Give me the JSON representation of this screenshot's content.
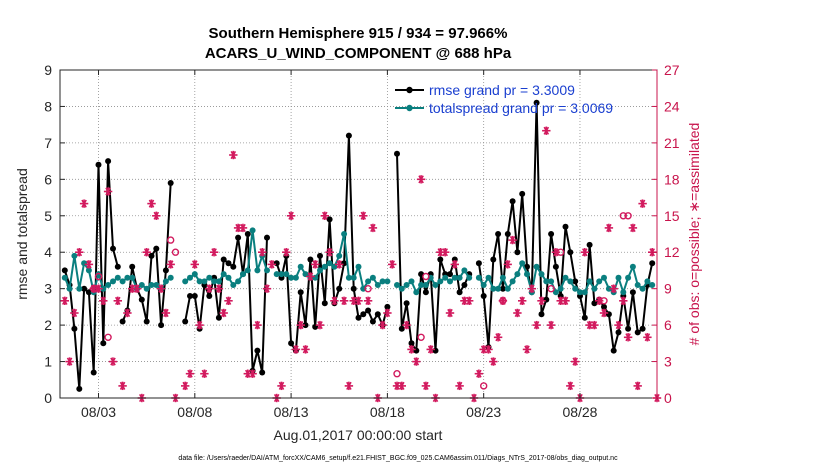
{
  "chart_data": {
    "type": "line",
    "title": "Southern Hemisphere 915 / 934 = 97.966%",
    "subtitle": "ACARS_U_WIND_COMPONENT @ 688 hPa",
    "xlabel": "Aug.01,2017 00:00:00 start",
    "ylabel": "rmse and totalspread",
    "y2label": "# of obs: o=possible; ∗=assimilated",
    "xlim": [
      1.0,
      32.0
    ],
    "ylim": [
      0,
      9
    ],
    "y2lim": [
      0,
      27
    ],
    "xticks": [
      {
        "x": 3,
        "label": "08/03"
      },
      {
        "x": 8,
        "label": "08/08"
      },
      {
        "x": 13,
        "label": "08/13"
      },
      {
        "x": 18,
        "label": "08/18"
      },
      {
        "x": 23,
        "label": "08/23"
      },
      {
        "x": 28,
        "label": "08/28"
      }
    ],
    "yticks": [
      "0",
      "1",
      "2",
      "3",
      "4",
      "5",
      "6",
      "7",
      "8",
      "9"
    ],
    "y2ticks": [
      "0",
      "3",
      "6",
      "9",
      "12",
      "15",
      "18",
      "21",
      "24",
      "27"
    ],
    "legend_position": "top-right",
    "footnote": "data file: /Users/raeder/DAI/ATM_forcXX/CAM6_setup/f.e21.FHIST_BGC.f09_025.CAM6assim.011/Diags_NTrS_2017-08/obs_diag_output.nc",
    "series": [
      {
        "name": "rmse grand pr = 3.3009",
        "color": "#000000",
        "segments": [
          {
            "x": [
              1.25,
              1.5,
              1.75,
              2.0,
              2.25,
              2.5,
              2.75,
              3.0,
              3.25,
              3.5,
              3.75,
              4.0
            ],
            "y": [
              3.5,
              3.1,
              1.9,
              0.25,
              3.0,
              2.9,
              0.7,
              6.4,
              1.5,
              6.5,
              4.1,
              3.6
            ]
          },
          {
            "x": [
              4.25,
              4.5,
              4.75,
              5.0,
              5.25,
              5.5,
              5.75,
              6.0,
              6.25,
              6.5,
              6.75
            ],
            "y": [
              2.1,
              2.4,
              3.6,
              3.0,
              2.7,
              2.1,
              3.9,
              4.1,
              2.0,
              3.5,
              5.9
            ]
          },
          {
            "x": [
              7.5,
              7.75,
              8.0,
              8.25,
              8.5,
              8.75,
              9.0,
              9.25,
              9.5,
              9.75,
              10.0,
              10.25,
              10.5,
              10.75,
              11.0,
              11.25,
              11.5,
              11.75
            ],
            "y": [
              2.1,
              2.8,
              2.8,
              1.9,
              3.1,
              2.8,
              3.3,
              2.2,
              3.8,
              3.7,
              3.6,
              4.4,
              3.4,
              4.5,
              0.75,
              1.3,
              0.7,
              4.4
            ]
          },
          {
            "x": [
              12.25,
              12.5,
              12.75,
              13.0,
              13.25,
              13.5,
              13.75,
              14.0,
              14.25,
              14.5,
              14.75,
              15.0,
              15.25,
              15.5,
              15.75,
              16.0,
              16.25,
              16.5,
              16.75,
              17.0,
              17.25,
              17.5,
              17.75,
              18.0
            ],
            "y": [
              3.7,
              3.3,
              3.9,
              1.5,
              1.3,
              2.9,
              2.0,
              3.8,
              1.95,
              3.9,
              2.6,
              4.9,
              2.6,
              3.0,
              3.7,
              7.2,
              3.0,
              2.2,
              2.3,
              2.4,
              2.1,
              2.3,
              2.0,
              2.5
            ]
          },
          {
            "x": [
              18.5,
              18.75,
              19.0,
              19.25,
              19.5,
              19.75,
              20.0,
              20.25,
              20.5,
              20.75,
              21.0,
              21.25,
              21.5,
              21.75,
              22.0,
              22.25
            ],
            "y": [
              6.7,
              1.9,
              2.6,
              1.5,
              1.3,
              3.4,
              2.9,
              3.4,
              1.3,
              3.8,
              3.4,
              3.4,
              3.8,
              2.9,
              3.1,
              3.4
            ]
          },
          {
            "x": [
              22.75,
              23.0,
              23.25,
              23.5,
              23.75,
              24.0,
              24.25,
              24.5,
              24.75,
              25.0,
              25.25,
              25.5,
              25.75,
              26.0,
              26.25,
              26.5,
              26.75,
              27.0,
              27.25,
              27.5,
              27.75,
              28.0,
              28.25,
              28.5,
              28.75,
              29.0,
              29.25,
              29.5,
              29.75,
              30.0,
              30.25,
              30.5,
              30.75,
              31.0,
              31.25,
              31.5,
              31.75
            ],
            "y": [
              3.7,
              2.8,
              1.4,
              3.8,
              4.5,
              3.0,
              4.5,
              5.4,
              4.0,
              5.6,
              3.6,
              2.9,
              8.1,
              2.3,
              2.7,
              4.5,
              3.6,
              2.8,
              4.7,
              4.0,
              3.2,
              2.8,
              2.2,
              4.2,
              2.6,
              2.7,
              2.5,
              2.3,
              1.3,
              1.8,
              2.8,
              1.9,
              2.9,
              1.8,
              1.9,
              3.1,
              3.7
            ]
          }
        ]
      },
      {
        "name": "totalspread grand pr = 3.0069",
        "color": "#0a7f7f",
        "segments": [
          {
            "x": [
              1.25,
              1.5,
              1.75,
              2.0,
              2.25,
              2.5,
              2.75,
              3.0,
              3.25,
              3.5,
              3.75,
              4.0
            ],
            "y": [
              3.3,
              3.0,
              3.9,
              3.0,
              3.7,
              3.5,
              2.9,
              3.4,
              3.0,
              3.1,
              3.2,
              3.3
            ]
          },
          {
            "x": [
              4.25,
              4.5,
              4.75,
              5.0,
              5.25,
              5.5,
              5.75,
              6.0,
              6.25,
              6.5,
              6.75
            ],
            "y": [
              3.2,
              3.3,
              3.3,
              3.0,
              3.1,
              3.0,
              3.1,
              3.1,
              3.0,
              3.2,
              3.3
            ]
          },
          {
            "x": [
              7.5,
              7.75,
              8.0,
              8.25,
              8.5,
              8.75,
              9.0,
              9.25,
              9.5,
              9.75,
              10.0,
              10.25,
              10.5,
              10.75,
              11.0,
              11.25,
              11.5,
              11.75
            ],
            "y": [
              3.2,
              3.3,
              3.4,
              3.2,
              3.2,
              3.3,
              3.2,
              3.2,
              3.4,
              3.3,
              3.1,
              3.2,
              3.4,
              3.5,
              4.6,
              3.5,
              3.9,
              3.5
            ]
          },
          {
            "x": [
              12.25,
              12.5,
              12.75,
              13.0,
              13.25,
              13.5,
              13.75,
              14.0,
              14.25,
              14.5,
              14.75,
              15.0,
              15.25,
              15.5,
              15.75,
              16.0,
              16.25,
              16.5,
              16.75,
              17.0,
              17.25,
              17.5,
              17.75,
              18.0
            ],
            "y": [
              3.4,
              3.4,
              3.4,
              3.3,
              3.3,
              3.6,
              3.4,
              3.3,
              3.3,
              3.5,
              3.6,
              3.7,
              3.6,
              3.9,
              4.5,
              3.3,
              3.3,
              3.6,
              3.0,
              3.2,
              3.3,
              3.1,
              3.2,
              3.2
            ]
          },
          {
            "x": [
              18.5,
              18.75,
              19.0,
              19.25,
              19.5,
              19.75,
              20.0,
              20.25,
              20.5,
              20.75,
              21.0,
              21.25,
              21.5,
              21.75,
              22.0,
              22.25
            ],
            "y": [
              3.1,
              3.0,
              3.1,
              3.2,
              2.9,
              3.1,
              3.1,
              3.3,
              3.1,
              3.2,
              3.3,
              3.2,
              3.3,
              3.3,
              3.5,
              3.3
            ]
          },
          {
            "x": [
              22.75,
              23.0,
              23.25,
              23.5,
              23.75,
              24.0,
              24.25,
              24.5,
              24.75,
              25.0,
              25.25,
              25.5,
              25.75,
              26.0,
              26.25,
              26.5,
              26.75,
              27.0,
              27.25,
              27.5,
              27.75,
              28.0,
              28.25,
              28.5,
              28.75,
              29.0,
              29.25,
              29.5,
              29.75,
              30.0,
              30.25,
              30.5,
              30.75,
              31.0,
              31.25,
              31.5,
              31.75
            ],
            "y": [
              3.3,
              3.1,
              3.3,
              3.0,
              3.0,
              3.3,
              3.0,
              3.2,
              3.4,
              3.7,
              3.4,
              2.9,
              3.6,
              3.4,
              3.2,
              3.2,
              2.9,
              3.0,
              3.3,
              3.2,
              3.0,
              2.9,
              2.9,
              3.2,
              3.0,
              3.2,
              3.3,
              3.0,
              2.9,
              3.3,
              2.9,
              3.3,
              3.6,
              3.1,
              3.0,
              3.2,
              3.1
            ]
          }
        ]
      }
    ],
    "obs_possible": {
      "symbol": "o",
      "color": "#d21a5e",
      "x": [
        2.75,
        3.0,
        3.5,
        6.75,
        7.0,
        17.0,
        18.5,
        19.75,
        20.0,
        23.0,
        24.0,
        26.5,
        27.0,
        29.25,
        30.25,
        30.5
      ],
      "y": [
        9,
        10,
        5,
        13,
        12,
        9,
        2,
        5,
        10,
        1,
        8,
        9,
        12,
        8,
        15,
        15
      ]
    },
    "obs_assimilated": {
      "symbol": "*",
      "color": "#d21a5e",
      "x": [
        1.25,
        1.5,
        1.75,
        2.0,
        2.25,
        2.5,
        2.75,
        3.0,
        3.25,
        3.5,
        3.75,
        4.0,
        4.25,
        4.5,
        4.75,
        5.0,
        5.25,
        5.5,
        5.75,
        6.0,
        6.25,
        6.5,
        6.75,
        7.0,
        7.5,
        7.75,
        8.0,
        8.25,
        8.5,
        8.75,
        9.0,
        9.25,
        9.5,
        9.75,
        10.0,
        10.25,
        10.5,
        10.75,
        11.0,
        11.25,
        11.5,
        11.75,
        12.0,
        12.25,
        12.5,
        12.75,
        13.0,
        13.25,
        13.5,
        13.75,
        14.0,
        14.25,
        14.5,
        14.75,
        15.0,
        15.25,
        15.5,
        15.75,
        16.0,
        16.25,
        16.5,
        16.75,
        17.0,
        17.25,
        17.5,
        17.75,
        18.0,
        18.25,
        18.5,
        18.75,
        19.0,
        19.25,
        19.5,
        19.75,
        20.0,
        20.25,
        20.5,
        20.75,
        21.0,
        21.25,
        21.5,
        21.75,
        22.0,
        22.25,
        22.5,
        22.75,
        23.0,
        23.25,
        23.5,
        23.75,
        24.0,
        24.25,
        24.5,
        24.75,
        25.0,
        25.25,
        25.5,
        25.75,
        26.0,
        26.25,
        26.5,
        26.75,
        27.0,
        27.25,
        27.5,
        27.75,
        28.0,
        28.25,
        28.5,
        28.75,
        29.0,
        29.25,
        29.5,
        29.75,
        30.0,
        30.25,
        30.5,
        30.75,
        31.0,
        31.25,
        31.5,
        31.75,
        32.0
      ],
      "y": [
        8,
        3,
        7,
        12,
        16,
        11,
        9,
        9,
        8,
        17,
        3,
        8,
        1,
        7,
        9,
        9,
        0,
        12,
        16,
        15,
        9,
        7,
        11,
        0,
        1,
        2,
        11,
        6,
        2,
        9,
        12,
        9,
        7,
        8,
        20,
        14,
        14,
        2,
        2,
        6,
        12,
        9,
        11,
        0,
        1,
        12,
        15,
        4,
        6,
        4,
        10,
        11,
        6,
        15,
        12,
        8,
        11,
        8,
        1,
        8,
        8,
        15,
        8,
        14,
        0,
        6,
        7,
        11,
        1,
        1,
        6,
        4,
        3,
        18,
        1,
        4,
        0,
        12,
        12,
        7,
        11,
        1,
        8,
        8,
        0,
        2,
        4,
        4,
        3,
        5,
        8,
        11,
        13,
        7,
        8,
        4,
        9,
        6,
        8,
        22,
        6,
        12,
        8,
        8,
        1,
        3,
        0,
        12,
        6,
        6,
        8,
        7,
        14,
        9,
        6,
        8,
        5,
        14,
        1,
        16,
        5,
        12,
        0
      ]
    }
  }
}
